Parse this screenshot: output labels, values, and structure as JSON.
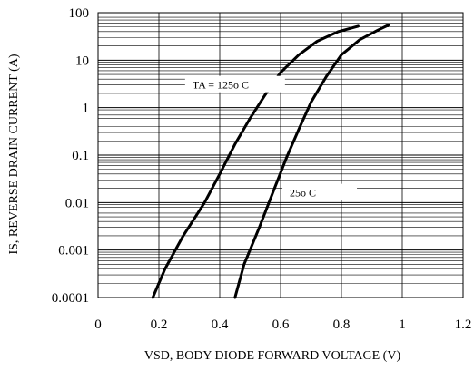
{
  "chart_data": {
    "type": "line",
    "xlabel": "VSD, BODY DIODE FORWARD VOLTAGE (V)",
    "ylabel": "IS, REVERSE DRAIN CURRENT (A)",
    "xlim": [
      0,
      1.2
    ],
    "ylim": [
      0.0001,
      100
    ],
    "yscale": "log",
    "grid": true,
    "x_ticks": [
      "0",
      "0.2",
      "0.4",
      "0.6",
      "0.8",
      "1",
      "1.2"
    ],
    "y_ticks": [
      "0.0001",
      "0.001",
      "0.01",
      "0.1",
      "1",
      "10",
      "100"
    ],
    "series": [
      {
        "name": "TA = 125o C",
        "x": [
          0.18,
          0.22,
          0.28,
          0.35,
          0.4,
          0.45,
          0.5,
          0.55,
          0.6,
          0.66,
          0.72,
          0.79,
          0.855
        ],
        "y": [
          0.0001,
          0.0004,
          0.002,
          0.01,
          0.04,
          0.17,
          0.6,
          1.9,
          5.5,
          13,
          25,
          40,
          52
        ]
      },
      {
        "name": "25o C",
        "x": [
          0.45,
          0.48,
          0.53,
          0.58,
          0.62,
          0.66,
          0.7,
          0.75,
          0.8,
          0.86,
          0.92,
          0.955
        ],
        "y": [
          0.0001,
          0.0005,
          0.003,
          0.02,
          0.09,
          0.35,
          1.3,
          4.5,
          13,
          27,
          43,
          55
        ]
      }
    ],
    "annotations": [
      "TA = 125o C",
      "25o C"
    ]
  }
}
